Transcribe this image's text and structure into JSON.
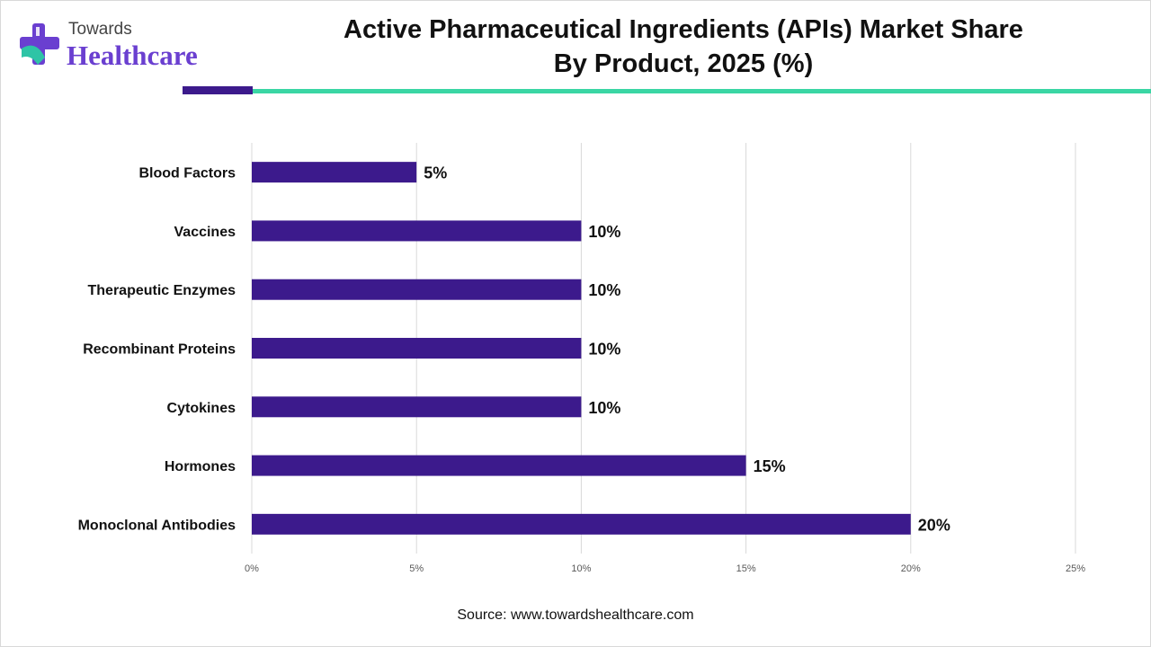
{
  "brand": {
    "logo_top": "Towards",
    "logo_main": "Healthcare",
    "colors": {
      "accent_dark": "#3c1a8c",
      "accent_teal": "#3ad6a4",
      "brand_purple": "#6a3fd0"
    }
  },
  "header": {
    "title_line1": "Active Pharmaceutical Ingredients (APIs) Market Share",
    "title_line2": "By Product, 2025 (%)"
  },
  "chart_data": {
    "type": "bar",
    "orientation": "horizontal",
    "categories": [
      "Blood Factors",
      "Vaccines",
      "Therapeutic Enzymes",
      "Recombinant Proteins",
      "Cytokines",
      "Hormones",
      "Monoclonal Antibodies"
    ],
    "values": [
      5,
      10,
      10,
      10,
      10,
      15,
      20
    ],
    "data_labels": [
      "5%",
      "10%",
      "10%",
      "10%",
      "10%",
      "15%",
      "20%"
    ],
    "title": "Active Pharmaceutical Ingredients (APIs) Market Share By Product, 2025 (%)",
    "xlabel": "",
    "ylabel": "",
    "xlim": [
      0,
      25
    ],
    "x_ticks": [
      "0%",
      "5%",
      "10%",
      "15%",
      "20%",
      "25%"
    ],
    "grid": true,
    "bar_color": "#3c1a8c"
  },
  "footer": {
    "source": "Source: www.towardshealthcare.com"
  }
}
